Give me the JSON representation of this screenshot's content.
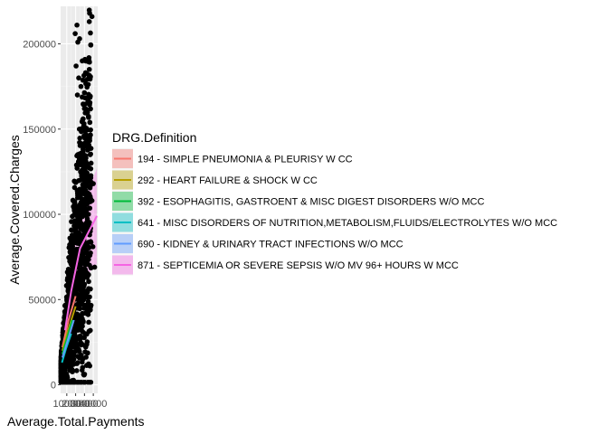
{
  "chart_data": {
    "type": "scatter",
    "xlabel": "Average.Total.Payments",
    "ylabel": "Average.Covered.Charges",
    "ylim": [
      -5000,
      222000
    ],
    "xlim": [
      3000,
      45000
    ],
    "y_ticks": [
      0,
      50000,
      100000,
      150000,
      200000
    ],
    "y_tick_labels": [
      "0",
      "50000",
      "100000",
      "150000",
      "200000"
    ],
    "x_ticks": [
      10000,
      20000,
      30000,
      40000
    ],
    "x_tick_labels": [
      "10000",
      "20000",
      "30000",
      "40000"
    ],
    "grid": true,
    "legend_position": "right",
    "legend": {
      "title": "DRG.Definition",
      "entries": [
        {
          "label": "194 - SIMPLE PNEUMONIA & PLEURISY W CC",
          "color": "#F8766D"
        },
        {
          "label": "292 - HEART FAILURE & SHOCK W CC",
          "color": "#B79F00"
        },
        {
          "label": "392 - ESOPHAGITIS, GASTROENT & MISC DIGEST DISORDERS W/O MCC",
          "color": "#00BA38"
        },
        {
          "label": "641 - MISC DISORDERS OF NUTRITION,METABOLISM,FLUIDS/ELECTROLYTES W/O MCC",
          "color": "#00BFC4"
        },
        {
          "label": "690 - KIDNEY & URINARY TRACT INFECTIONS W/O MCC",
          "color": "#619CFF"
        },
        {
          "label": "871 - SEPTICEMIA OR SEVERE SEPSIS W/O MV 96+ HOURS W MCC",
          "color": "#F564E3"
        }
      ]
    },
    "outlier_points": [
      {
        "x": 38500,
        "y": 216000
      },
      {
        "x": 21500,
        "y": 211000
      },
      {
        "x": 24500,
        "y": 203000
      },
      {
        "x": 19500,
        "y": 206000
      },
      {
        "x": 22500,
        "y": 201000
      },
      {
        "x": 27500,
        "y": 190000
      },
      {
        "x": 23500,
        "y": 180000
      },
      {
        "x": 26000,
        "y": 175000
      },
      {
        "x": 35500,
        "y": 185000
      },
      {
        "x": 20500,
        "y": 187000
      },
      {
        "x": 22000,
        "y": 170000
      },
      {
        "x": 30000,
        "y": 162000
      },
      {
        "x": 28500,
        "y": 156000
      },
      {
        "x": 36500,
        "y": 135000
      },
      {
        "x": 37500,
        "y": 130000
      },
      {
        "x": 33500,
        "y": 128000
      },
      {
        "x": 34000,
        "y": 121000
      },
      {
        "x": 40000,
        "y": 118000
      },
      {
        "x": 38500,
        "y": 108000
      },
      {
        "x": 36000,
        "y": 93000
      },
      {
        "x": 39500,
        "y": 81000
      },
      {
        "x": 41500,
        "y": 69000
      },
      {
        "x": 37000,
        "y": 84000
      },
      {
        "x": 29500,
        "y": 146000
      },
      {
        "x": 31000,
        "y": 142000
      },
      {
        "x": 32500,
        "y": 110000
      },
      {
        "x": 34500,
        "y": 100000
      }
    ],
    "trend_lines": [
      {
        "color": "#F8766D",
        "x": [
          5000,
          12000,
          20000
        ],
        "y": [
          22000,
          38000,
          52000
        ],
        "band": 6000
      },
      {
        "color": "#B79F00",
        "x": [
          5000,
          12000,
          20000
        ],
        "y": [
          20000,
          33000,
          46000
        ],
        "band": 5000
      },
      {
        "color": "#00BA38",
        "x": [
          5000,
          10000,
          16000
        ],
        "y": [
          18000,
          27000,
          38000
        ],
        "band": 5000
      },
      {
        "color": "#00BFC4",
        "x": [
          4500,
          9000,
          15000
        ],
        "y": [
          13000,
          21000,
          30000
        ],
        "band": 5000
      },
      {
        "color": "#619CFF",
        "x": [
          5000,
          11000,
          18000
        ],
        "y": [
          16000,
          26000,
          38000
        ],
        "band": 5000
      },
      {
        "color": "#F564E3",
        "x": [
          8000,
          15000,
          25000,
          35000,
          44000
        ],
        "y": [
          32000,
          55000,
          80000,
          90000,
          99000
        ],
        "band": 14000
      }
    ]
  }
}
